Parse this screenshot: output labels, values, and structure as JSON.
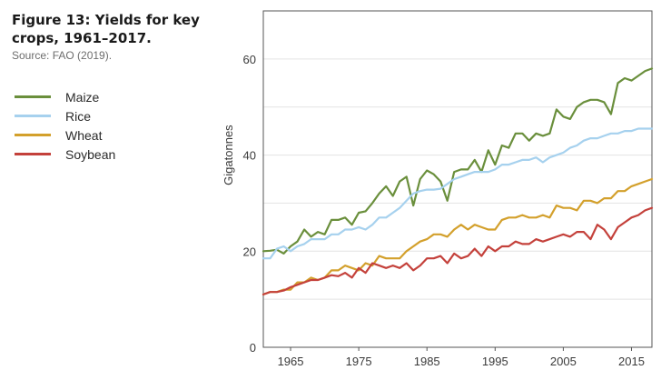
{
  "figure": {
    "title": "Figure 13: Yields for key\ncrops, 1961–2017.",
    "source": "Source: FAO (2019)."
  },
  "colors": {
    "maize": "#6a8f3c",
    "rice": "#a6d1ee",
    "wheat": "#d3a02c",
    "soybean": "#c4413b",
    "grid": "#e3e3e3",
    "axis": "#555555"
  },
  "chart_data": {
    "type": "line",
    "ylabel": "Gigatonnes",
    "xlabel": "",
    "xlim": [
      1961,
      2018
    ],
    "ylim": [
      0,
      70
    ],
    "grid": true,
    "legend_position": "left",
    "xticks": [
      1965,
      1975,
      1985,
      1995,
      2005,
      2015
    ],
    "yticks": [
      0,
      20,
      40,
      60
    ],
    "x": [
      1961,
      1962,
      1963,
      1964,
      1965,
      1966,
      1967,
      1968,
      1969,
      1970,
      1971,
      1972,
      1973,
      1974,
      1975,
      1976,
      1977,
      1978,
      1979,
      1980,
      1981,
      1982,
      1983,
      1984,
      1985,
      1986,
      1987,
      1988,
      1989,
      1990,
      1991,
      1992,
      1993,
      1994,
      1995,
      1996,
      1997,
      1998,
      1999,
      2000,
      2001,
      2002,
      2003,
      2004,
      2005,
      2006,
      2007,
      2008,
      2009,
      2010,
      2011,
      2012,
      2013,
      2014,
      2015,
      2016,
      2017,
      2018
    ],
    "series": [
      {
        "name": "Maize",
        "key": "maize",
        "values": [
          20.0,
          20.1,
          20.3,
          19.5,
          21.0,
          22.0,
          24.5,
          23.0,
          24.0,
          23.5,
          26.5,
          26.5,
          27.0,
          25.5,
          28.0,
          28.3,
          30.0,
          32.0,
          33.5,
          31.5,
          34.5,
          35.5,
          29.5,
          35.0,
          36.8,
          36.0,
          34.5,
          30.5,
          36.5,
          37.0,
          37.0,
          39.0,
          36.5,
          41.0,
          38.0,
          42.0,
          41.5,
          44.5,
          44.5,
          43.0,
          44.5,
          44.0,
          44.5,
          49.5,
          48.0,
          47.5,
          50.0,
          51.0,
          51.5,
          51.5,
          51.0,
          48.5,
          55.0,
          56.0,
          55.5,
          56.5,
          57.5,
          58.0
        ]
      },
      {
        "name": "Rice",
        "key": "rice",
        "values": [
          18.5,
          18.5,
          20.5,
          21.0,
          20.0,
          21.0,
          21.5,
          22.5,
          22.5,
          22.5,
          23.5,
          23.5,
          24.5,
          24.5,
          25.0,
          24.5,
          25.5,
          27.0,
          27.0,
          28.0,
          29.0,
          30.5,
          32.0,
          32.5,
          32.8,
          32.8,
          33.0,
          34.0,
          35.0,
          35.5,
          36.0,
          36.5,
          36.5,
          36.5,
          37.0,
          38.0,
          38.0,
          38.5,
          39.0,
          39.0,
          39.5,
          38.5,
          39.5,
          40.0,
          40.5,
          41.5,
          42.0,
          43.0,
          43.5,
          43.5,
          44.0,
          44.5,
          44.5,
          45.0,
          45.0,
          45.5,
          45.5,
          45.5
        ]
      },
      {
        "name": "Wheat",
        "key": "wheat",
        "values": [
          11.0,
          11.5,
          11.5,
          12.0,
          12.0,
          13.5,
          13.5,
          14.5,
          14.0,
          14.5,
          16.0,
          16.0,
          17.0,
          16.5,
          16.0,
          17.5,
          17.0,
          19.0,
          18.5,
          18.5,
          18.5,
          20.0,
          21.0,
          22.0,
          22.5,
          23.5,
          23.5,
          23.0,
          24.5,
          25.5,
          24.5,
          25.5,
          25.0,
          24.5,
          24.5,
          26.5,
          27.0,
          27.0,
          27.5,
          27.0,
          27.0,
          27.5,
          27.0,
          29.5,
          29.0,
          29.0,
          28.5,
          30.5,
          30.5,
          30.0,
          31.0,
          31.0,
          32.5,
          32.5,
          33.5,
          34.0,
          34.5,
          35.0
        ]
      },
      {
        "name": "Soybean",
        "key": "soybean",
        "values": [
          11.0,
          11.5,
          11.5,
          11.8,
          12.5,
          13.0,
          13.5,
          14.0,
          14.0,
          14.5,
          15.0,
          14.8,
          15.5,
          14.5,
          16.5,
          15.5,
          17.5,
          17.0,
          16.5,
          17.0,
          16.5,
          17.5,
          16.0,
          17.0,
          18.5,
          18.5,
          19.0,
          17.5,
          19.5,
          18.5,
          19.0,
          20.5,
          19.0,
          21.0,
          20.0,
          21.0,
          21.0,
          22.0,
          21.5,
          21.5,
          22.5,
          22.0,
          22.5,
          23.0,
          23.5,
          23.0,
          24.0,
          24.0,
          22.5,
          25.5,
          24.5,
          22.5,
          25.0,
          26.0,
          27.0,
          27.5,
          28.5,
          29.0
        ]
      }
    ]
  }
}
